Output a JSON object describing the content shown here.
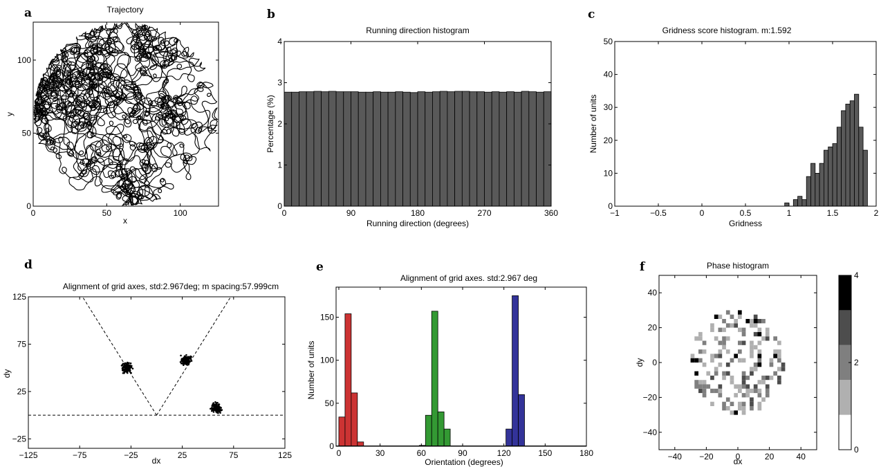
{
  "panels": {
    "a": {
      "label": "a"
    },
    "b": {
      "label": "b"
    },
    "c": {
      "label": "c"
    },
    "d": {
      "label": "d"
    },
    "e": {
      "label": "e"
    },
    "f": {
      "label": "f"
    }
  },
  "chart_data": [
    {
      "id": "a",
      "type": "line",
      "title": "Trajectory",
      "xlabel": "x",
      "ylabel": "y",
      "xlim": [
        0,
        126
      ],
      "ylim": [
        0,
        126
      ],
      "xticks": [
        0,
        50,
        100
      ],
      "yticks": [
        0,
        50,
        100
      ],
      "description_of_marks": "dense random-walk trajectory confined to a circular arena of radius 63 centered at (63, 63)",
      "arena": {
        "cx": 63,
        "cy": 63,
        "r": 63
      }
    },
    {
      "id": "b",
      "type": "bar",
      "title": "Running direction histogram",
      "xlabel": "Running direction (degrees)",
      "ylabel": "Percentage (%)",
      "xlim": [
        0,
        360
      ],
      "ylim": [
        0,
        4
      ],
      "xticks": [
        0,
        90,
        180,
        270,
        360
      ],
      "yticks": [
        0,
        1,
        2,
        3,
        4
      ],
      "bin_width": 10,
      "values": [
        2.77,
        2.77,
        2.78,
        2.78,
        2.79,
        2.78,
        2.79,
        2.78,
        2.78,
        2.78,
        2.77,
        2.77,
        2.78,
        2.77,
        2.77,
        2.78,
        2.77,
        2.76,
        2.78,
        2.77,
        2.78,
        2.79,
        2.78,
        2.79,
        2.79,
        2.78,
        2.78,
        2.77,
        2.78,
        2.77,
        2.78,
        2.77,
        2.79,
        2.78,
        2.77,
        2.78
      ],
      "color": "#595959"
    },
    {
      "id": "c",
      "type": "bar",
      "title": "Gridness score histogram. m:1.592",
      "xlabel": "Gridness",
      "ylabel": "Number of units",
      "xlim": [
        -1,
        2
      ],
      "ylim": [
        0,
        50
      ],
      "xticks": [
        -1,
        -0.5,
        0,
        0.5,
        1,
        1.5,
        2
      ],
      "yticks": [
        0,
        10,
        20,
        30,
        40,
        50
      ],
      "bin_start": 0.95,
      "bin_width": 0.05,
      "values": [
        1,
        0,
        2,
        3,
        2,
        9,
        13,
        10,
        13,
        17,
        18,
        19,
        24,
        29,
        31,
        32,
        34,
        24,
        17
      ],
      "color": "#595959"
    },
    {
      "id": "d",
      "type": "scatter",
      "title": "Alignment of grid axes, std:2.967deg; m spacing:57.999cm",
      "xlabel": "dx",
      "ylabel": "dy",
      "xlim": [
        -125,
        125
      ],
      "ylim": [
        -35,
        125
      ],
      "xticks": [
        -125,
        -75,
        -25,
        25,
        75,
        125
      ],
      "yticks": [
        -25,
        25,
        75,
        125
      ],
      "clusters": [
        {
          "x": -29,
          "y": 50
        },
        {
          "x": 29,
          "y": 58
        },
        {
          "x": 58,
          "y": 8
        }
      ],
      "reference_lines": [
        {
          "from": [
            0,
            0
          ],
          "to": [
            72.2,
            125
          ]
        },
        {
          "from": [
            0,
            0
          ],
          "to": [
            -72.2,
            125
          ]
        },
        {
          "from": [
            -125,
            0
          ],
          "to": [
            125,
            0
          ]
        }
      ]
    },
    {
      "id": "e",
      "type": "bar",
      "title": "Alignment of grid axes. std:2.967 deg",
      "xlabel": "Orientation (degrees)",
      "ylabel": "Number of units",
      "xlim": [
        -2,
        180
      ],
      "ylim": [
        0,
        185
      ],
      "xticks": [
        0,
        30,
        60,
        90,
        120,
        150,
        180
      ],
      "yticks": [
        0,
        50,
        100,
        150
      ],
      "bin_width": 4.5,
      "series": [
        {
          "color": "#cc3333",
          "bins": [
            [
              0,
              34
            ],
            [
              4.5,
              154
            ],
            [
              9,
              62
            ],
            [
              13.5,
              5
            ]
          ]
        },
        {
          "color": "#339933",
          "bins": [
            [
              58.5,
              1
            ],
            [
              63,
              36
            ],
            [
              67.5,
              157
            ],
            [
              72,
              40
            ],
            [
              76.5,
              20
            ]
          ]
        },
        {
          "color": "#333399",
          "bins": [
            [
              121.5,
              20
            ],
            [
              126,
              175
            ],
            [
              130.5,
              60
            ]
          ]
        }
      ]
    },
    {
      "id": "f",
      "type": "heatmap",
      "title": "Phase histogram",
      "xlabel": "dx",
      "ylabel": "dy",
      "xlim": [
        -50,
        50
      ],
      "ylim": [
        -50,
        50
      ],
      "xticks": [
        -40,
        -20,
        0,
        20,
        40
      ],
      "yticks": [
        -40,
        -20,
        0,
        20,
        40
      ],
      "colorbar": {
        "min": 0,
        "max": 4,
        "ticks": [
          0,
          2,
          4
        ],
        "levels": [
          "#ffffff",
          "#b0b0b0",
          "#7f7f7f",
          "#4d4d4d",
          "#000000"
        ]
      },
      "cell_size": 2.5,
      "seed": 7,
      "disc_radius": 30
    }
  ]
}
